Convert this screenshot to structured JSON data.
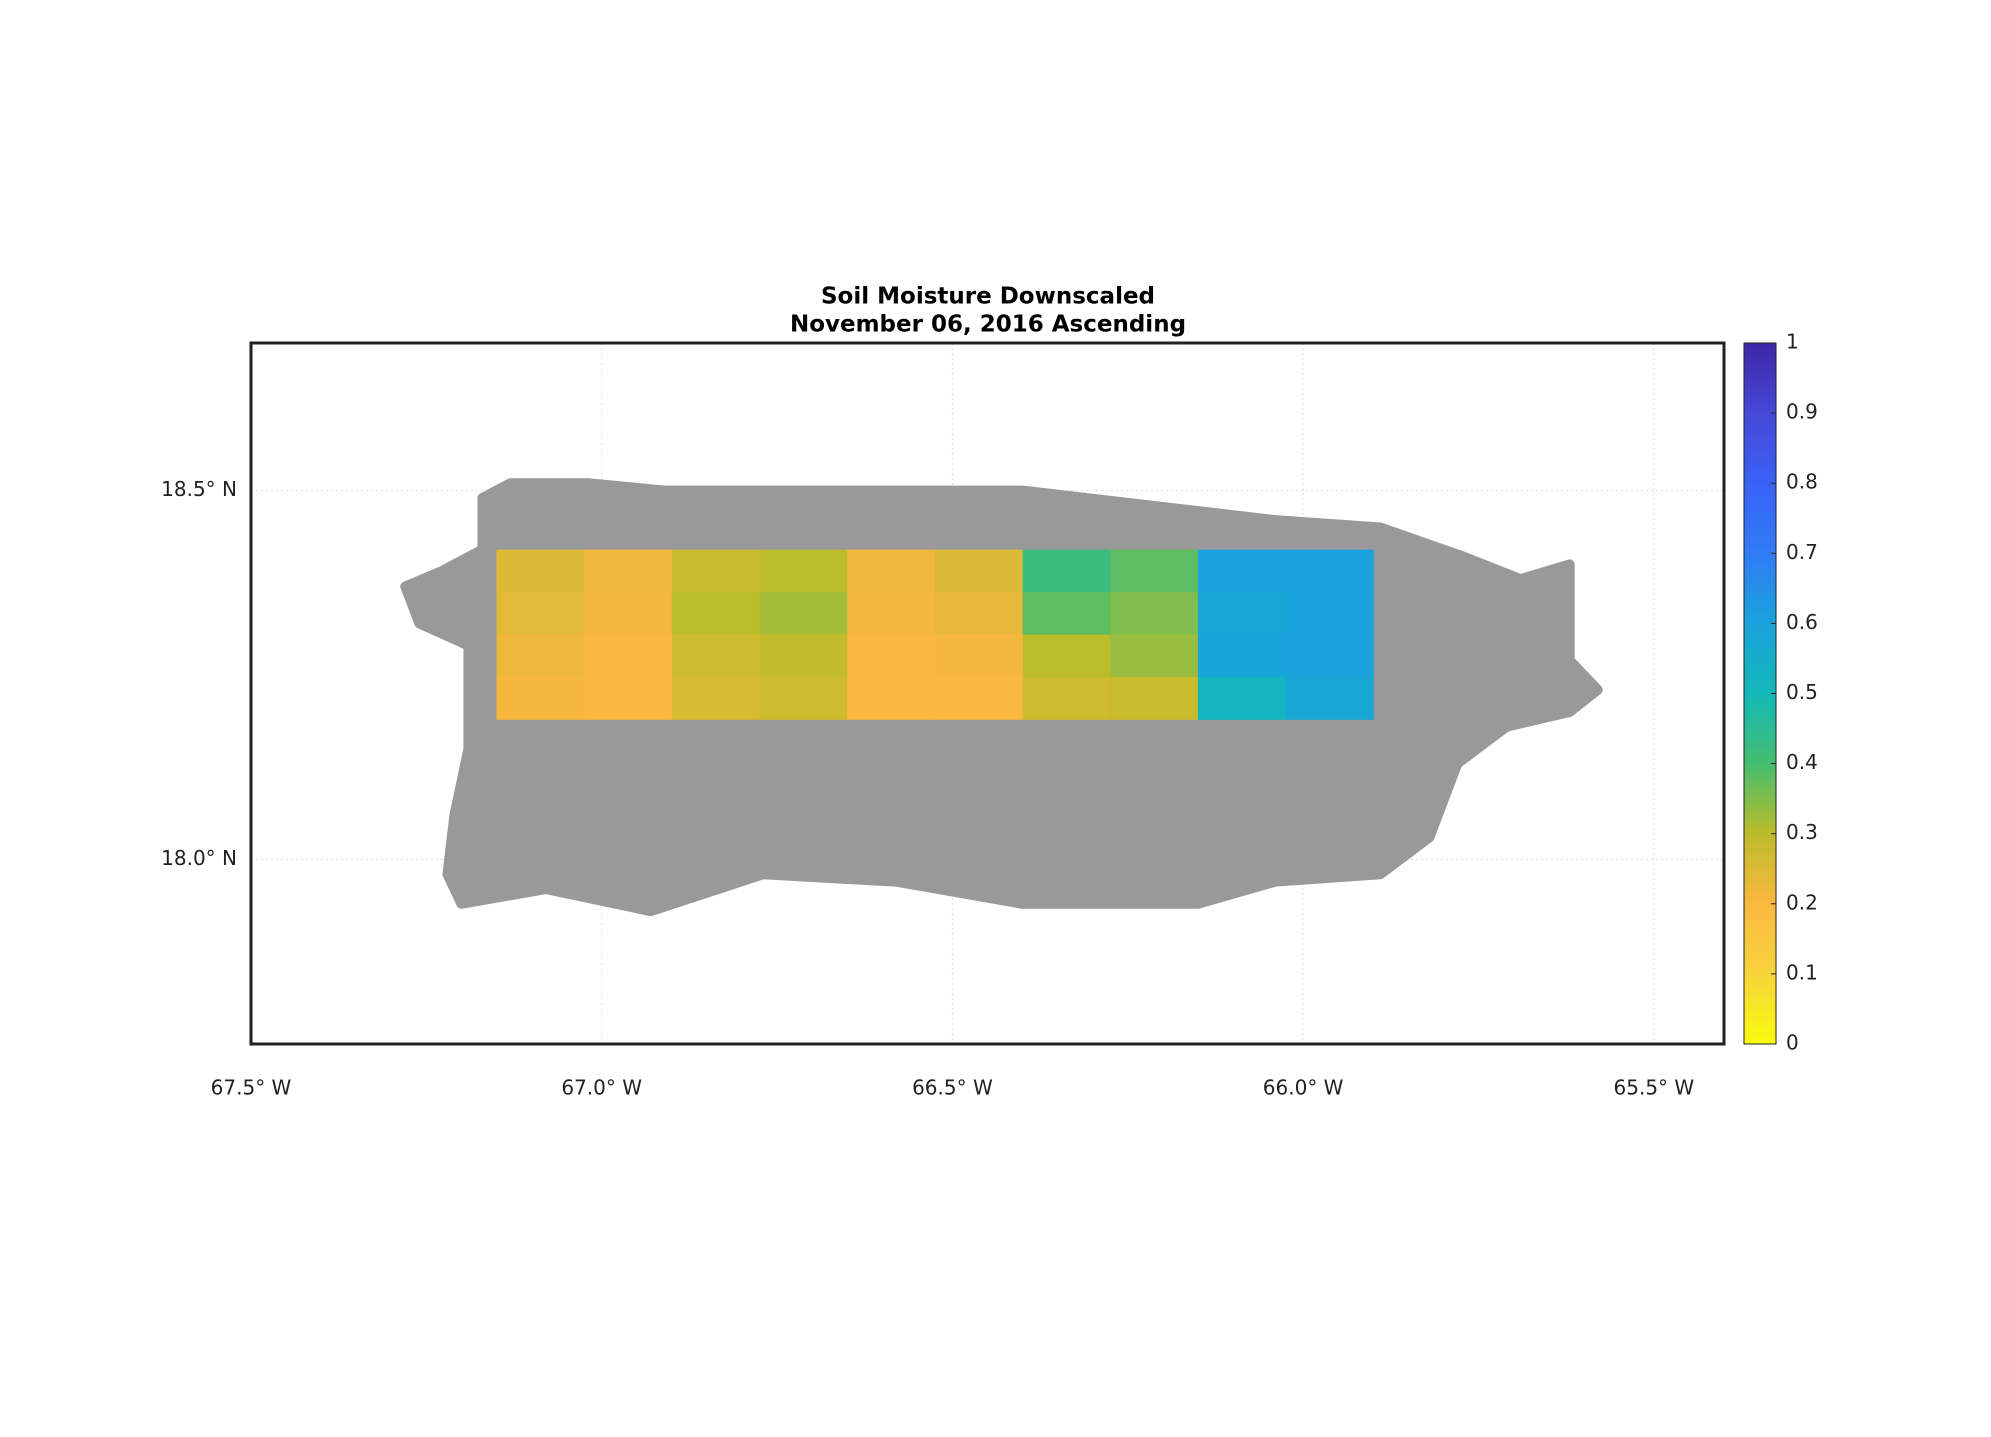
{
  "chart_data": {
    "type": "heatmap",
    "title": "Soil Moisture Downscaled",
    "subtitle": "November 06, 2016 Ascending",
    "xlim": [
      -67.5,
      -65.4
    ],
    "ylim": [
      17.75,
      18.7
    ],
    "xticks": [
      {
        "value": -67.5,
        "label": "67.5° W"
      },
      {
        "value": -67.0,
        "label": "67.0° W"
      },
      {
        "value": -66.5,
        "label": "66.5° W"
      },
      {
        "value": -66.0,
        "label": "66.0° W"
      },
      {
        "value": -65.5,
        "label": "65.5° W"
      }
    ],
    "yticks": [
      {
        "value": 18.0,
        "label": "18.0° N"
      },
      {
        "value": 18.5,
        "label": "18.5° N"
      }
    ],
    "grid": true,
    "land": {
      "color": "#999999",
      "lon": [
        -67.28,
        -67.23,
        -67.17,
        -67.17,
        -67.13,
        -67.02,
        -66.91,
        -66.77,
        -66.58,
        -66.4,
        -66.22,
        -66.13,
        -66.04,
        -65.89,
        -65.77,
        -65.69,
        -65.62,
        -65.62,
        -65.58,
        -65.62,
        -65.71,
        -65.78,
        -65.82,
        -65.89,
        -66.04,
        -66.15,
        -66.29,
        -66.4,
        -66.58,
        -66.77,
        -66.93,
        -67.08,
        -67.2,
        -67.22,
        -67.21,
        -67.19,
        -67.19,
        -67.26
      ],
      "lat": [
        18.37,
        18.39,
        18.42,
        18.49,
        18.51,
        18.51,
        18.5,
        18.5,
        18.5,
        18.5,
        18.48,
        18.47,
        18.46,
        18.45,
        18.41,
        18.38,
        18.4,
        18.27,
        18.23,
        18.2,
        18.18,
        18.13,
        18.03,
        17.98,
        17.97,
        17.94,
        17.94,
        17.94,
        17.97,
        17.98,
        17.93,
        17.96,
        17.94,
        17.98,
        18.06,
        18.15,
        18.29,
        18.32
      ]
    },
    "lon_edges": [
      -67.15,
      -67.025,
      -66.9,
      -66.775,
      -66.65,
      -66.525,
      -66.4,
      -66.275,
      -66.15,
      -66.025,
      -65.9
    ],
    "lat_edges": [
      18.42,
      18.3625,
      18.305,
      18.2475,
      18.19
    ],
    "values": [
      [
        0.25,
        0.22,
        0.28,
        0.3,
        0.22,
        0.25,
        0.42,
        0.38,
        0.6,
        0.6
      ],
      [
        0.24,
        0.21,
        0.3,
        0.32,
        0.21,
        0.23,
        0.38,
        0.35,
        0.58,
        0.6
      ],
      [
        0.22,
        0.2,
        0.27,
        0.29,
        0.2,
        0.21,
        0.3,
        0.33,
        0.59,
        0.6
      ],
      [
        0.21,
        0.2,
        0.26,
        0.27,
        0.2,
        0.2,
        0.27,
        0.28,
        0.52,
        0.58
      ]
    ],
    "colorbar": {
      "lim": [
        0,
        1
      ],
      "ticks": [
        0,
        0.1,
        0.2,
        0.3,
        0.4,
        0.5,
        0.6,
        0.7,
        0.8,
        0.9,
        1
      ],
      "colormap": [
        "#f9fb0e",
        "#f7d43a",
        "#fbb83f",
        "#bcbc2a",
        "#44be6f",
        "#12b8b9",
        "#1aa2dc",
        "#2f7cf6",
        "#3a62f8",
        "#4548d8",
        "#3e26a8"
      ]
    }
  }
}
